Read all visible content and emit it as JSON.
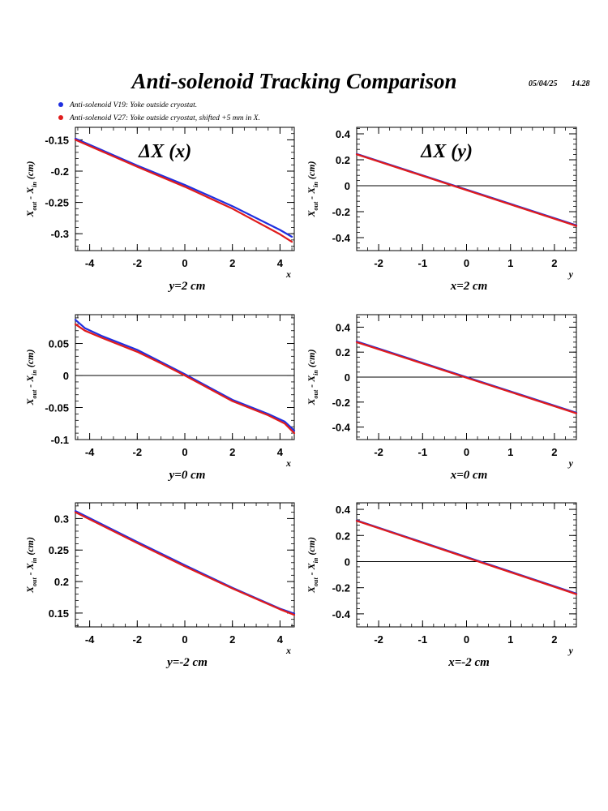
{
  "header": {
    "title": "Anti-solenoid Tracking Comparison",
    "date": "05/04/25",
    "time": "14.28"
  },
  "legend": [
    {
      "label": "Anti-solenoid V19: Yoke outside cryostat.",
      "color": "#1f2fe0"
    },
    {
      "label": "Anti-solenoid V27: Yoke outside cryostat, shifted +5 mm in X.",
      "color": "#e01c1c"
    }
  ],
  "colors": {
    "series_v19": "#1f2fe0",
    "series_v27": "#e01c1c",
    "axis": "#000000",
    "zero_line": "#000000"
  },
  "chart_data": [
    {
      "type": "line",
      "panel_label": "ΔX (x)",
      "ylabel_main": "X",
      "ylabel_sub_out": "out",
      "ylabel_dash": " - X",
      "ylabel_sub_in": "in",
      "ylabel_unit": " (cm)",
      "x_axis_letter": "x",
      "caption": "y=2 cm",
      "xlim": [
        -4.6,
        4.6
      ],
      "ylim": [
        -0.327,
        -0.13
      ],
      "xticks": [
        -4,
        -2,
        0,
        2,
        4
      ],
      "xtick_labels": [
        "-4",
        "-2",
        "0",
        "2",
        "4"
      ],
      "yticks": [
        -0.15,
        -0.2,
        -0.25,
        -0.3
      ],
      "ytick_labels": [
        "-0.15",
        "-0.2",
        "-0.25",
        "-0.3"
      ],
      "zero_line": false,
      "series": [
        {
          "name": "Anti-solenoid V19: Yoke outside cryostat.",
          "x": [
            -4.6,
            -2,
            0,
            2,
            4,
            4.5
          ],
          "y": [
            -0.148,
            -0.191,
            -0.222,
            -0.256,
            -0.294,
            -0.305
          ]
        },
        {
          "name": "Anti-solenoid V27: Yoke outside cryostat, shifted +5 mm in X.",
          "x": [
            -4.6,
            -2,
            0,
            2,
            4,
            4.5
          ],
          "y": [
            -0.15,
            -0.193,
            -0.225,
            -0.26,
            -0.301,
            -0.313
          ]
        }
      ]
    },
    {
      "type": "line",
      "panel_label": "ΔX (y)",
      "ylabel_main": "X",
      "ylabel_sub_out": "out",
      "ylabel_dash": " - X",
      "ylabel_sub_in": "in",
      "ylabel_unit": " (cm)",
      "x_axis_letter": "y",
      "caption": "x=2 cm",
      "xlim": [
        -2.5,
        2.5
      ],
      "ylim": [
        -0.5,
        0.45
      ],
      "xticks": [
        -2,
        -1,
        0,
        1,
        2
      ],
      "xtick_labels": [
        "-2",
        "-1",
        "0",
        "1",
        "2"
      ],
      "yticks": [
        0.4,
        0.2,
        0,
        -0.2,
        -0.4
      ],
      "ytick_labels": [
        "0.4",
        "0.2",
        "0",
        "-0.2",
        "-0.4"
      ],
      "zero_line": true,
      "series": [
        {
          "name": "Anti-solenoid V19: Yoke outside cryostat.",
          "x": [
            -2.5,
            2.5
          ],
          "y": [
            0.245,
            -0.305
          ]
        },
        {
          "name": "Anti-solenoid V27: Yoke outside cryostat, shifted +5 mm in X.",
          "x": [
            -2.5,
            2.5
          ],
          "y": [
            0.242,
            -0.31
          ]
        }
      ]
    },
    {
      "type": "line",
      "panel_label": "",
      "ylabel_main": "X",
      "ylabel_sub_out": "out",
      "ylabel_dash": " - X",
      "ylabel_sub_in": "in",
      "ylabel_unit": " (cm)",
      "x_axis_letter": "x",
      "caption": "y=0 cm",
      "xlim": [
        -4.6,
        4.6
      ],
      "ylim": [
        -0.1,
        0.095
      ],
      "xticks": [
        -4,
        -2,
        0,
        2,
        4
      ],
      "xtick_labels": [
        "-4",
        "-2",
        "0",
        "2",
        "4"
      ],
      "yticks": [
        0.05,
        0,
        -0.05,
        -0.1
      ],
      "ytick_labels": [
        "0.05",
        "0",
        "-0.05",
        "-0.1"
      ],
      "zero_line": true,
      "series": [
        {
          "name": "Anti-solenoid V19: Yoke outside cryostat.",
          "x": [
            -4.6,
            -4.2,
            -3.5,
            -2,
            -1,
            0,
            1,
            2,
            3.5,
            4.2,
            4.6
          ],
          "y": [
            0.087,
            0.074,
            0.062,
            0.04,
            0.021,
            0.002,
            -0.018,
            -0.038,
            -0.06,
            -0.072,
            -0.086
          ]
        },
        {
          "name": "Anti-solenoid V27: Yoke outside cryostat, shifted +5 mm in X.",
          "x": [
            -4.6,
            -4.2,
            -3.5,
            -2,
            -1,
            0,
            1,
            2,
            3.5,
            4.2,
            4.6
          ],
          "y": [
            0.08,
            0.07,
            0.059,
            0.037,
            0.019,
            0.0,
            -0.02,
            -0.04,
            -0.062,
            -0.075,
            -0.09
          ]
        }
      ]
    },
    {
      "type": "line",
      "panel_label": "",
      "ylabel_main": "X",
      "ylabel_sub_out": "out",
      "ylabel_dash": " - X",
      "ylabel_sub_in": "in",
      "ylabel_unit": " (cm)",
      "x_axis_letter": "y",
      "caption": "x=0 cm",
      "xlim": [
        -2.5,
        2.5
      ],
      "ylim": [
        -0.5,
        0.5
      ],
      "xticks": [
        -2,
        -1,
        0,
        1,
        2
      ],
      "xtick_labels": [
        "-2",
        "-1",
        "0",
        "1",
        "2"
      ],
      "yticks": [
        0.4,
        0.2,
        0,
        -0.2,
        -0.4
      ],
      "ytick_labels": [
        "0.4",
        "0.2",
        "0",
        "-0.2",
        "-0.4"
      ],
      "zero_line": true,
      "series": [
        {
          "name": "Anti-solenoid V19: Yoke outside cryostat.",
          "x": [
            -2.5,
            2.5
          ],
          "y": [
            0.285,
            -0.285
          ]
        },
        {
          "name": "Anti-solenoid V27: Yoke outside cryostat, shifted +5 mm in X.",
          "x": [
            -2.5,
            2.5
          ],
          "y": [
            0.28,
            -0.29
          ]
        }
      ]
    },
    {
      "type": "line",
      "panel_label": "",
      "ylabel_main": "X",
      "ylabel_sub_out": "out",
      "ylabel_dash": " - X",
      "ylabel_sub_in": "in",
      "ylabel_unit": " (cm)",
      "x_axis_letter": "x",
      "caption": "y=-2 cm",
      "xlim": [
        -4.6,
        4.6
      ],
      "ylim": [
        0.128,
        0.325
      ],
      "xticks": [
        -4,
        -2,
        0,
        2,
        4
      ],
      "xtick_labels": [
        "-4",
        "-2",
        "0",
        "2",
        "4"
      ],
      "yticks": [
        0.3,
        0.25,
        0.2,
        0.15
      ],
      "ytick_labels": [
        "0.3",
        "0.25",
        "0.2",
        "0.15"
      ],
      "zero_line": false,
      "series": [
        {
          "name": "Anti-solenoid V19: Yoke outside cryostat.",
          "x": [
            -4.6,
            -2,
            0,
            2,
            4,
            4.6
          ],
          "y": [
            0.312,
            0.263,
            0.226,
            0.19,
            0.157,
            0.149
          ]
        },
        {
          "name": "Anti-solenoid V27: Yoke outside cryostat, shifted +5 mm in X.",
          "x": [
            -4.6,
            -2,
            0,
            2,
            4,
            4.6
          ],
          "y": [
            0.31,
            0.261,
            0.224,
            0.189,
            0.156,
            0.147
          ]
        }
      ]
    },
    {
      "type": "line",
      "panel_label": "",
      "ylabel_main": "X",
      "ylabel_sub_out": "out",
      "ylabel_dash": " - X",
      "ylabel_sub_in": "in",
      "ylabel_unit": " (cm)",
      "x_axis_letter": "y",
      "caption": "x=-2 cm",
      "xlim": [
        -2.5,
        2.5
      ],
      "ylim": [
        -0.5,
        0.45
      ],
      "xticks": [
        -2,
        -1,
        0,
        1,
        2
      ],
      "xtick_labels": [
        "-2",
        "-1",
        "0",
        "1",
        "2"
      ],
      "yticks": [
        0.4,
        0.2,
        0,
        -0.2,
        -0.4
      ],
      "ytick_labels": [
        "0.4",
        "0.2",
        "0",
        "-0.2",
        "-0.4"
      ],
      "zero_line": true,
      "series": [
        {
          "name": "Anti-solenoid V19: Yoke outside cryostat.",
          "x": [
            -2.5,
            2.5
          ],
          "y": [
            0.315,
            -0.245
          ]
        },
        {
          "name": "Anti-solenoid V27: Yoke outside cryostat, shifted +5 mm in X.",
          "x": [
            -2.5,
            2.5
          ],
          "y": [
            0.312,
            -0.25
          ]
        }
      ]
    }
  ]
}
